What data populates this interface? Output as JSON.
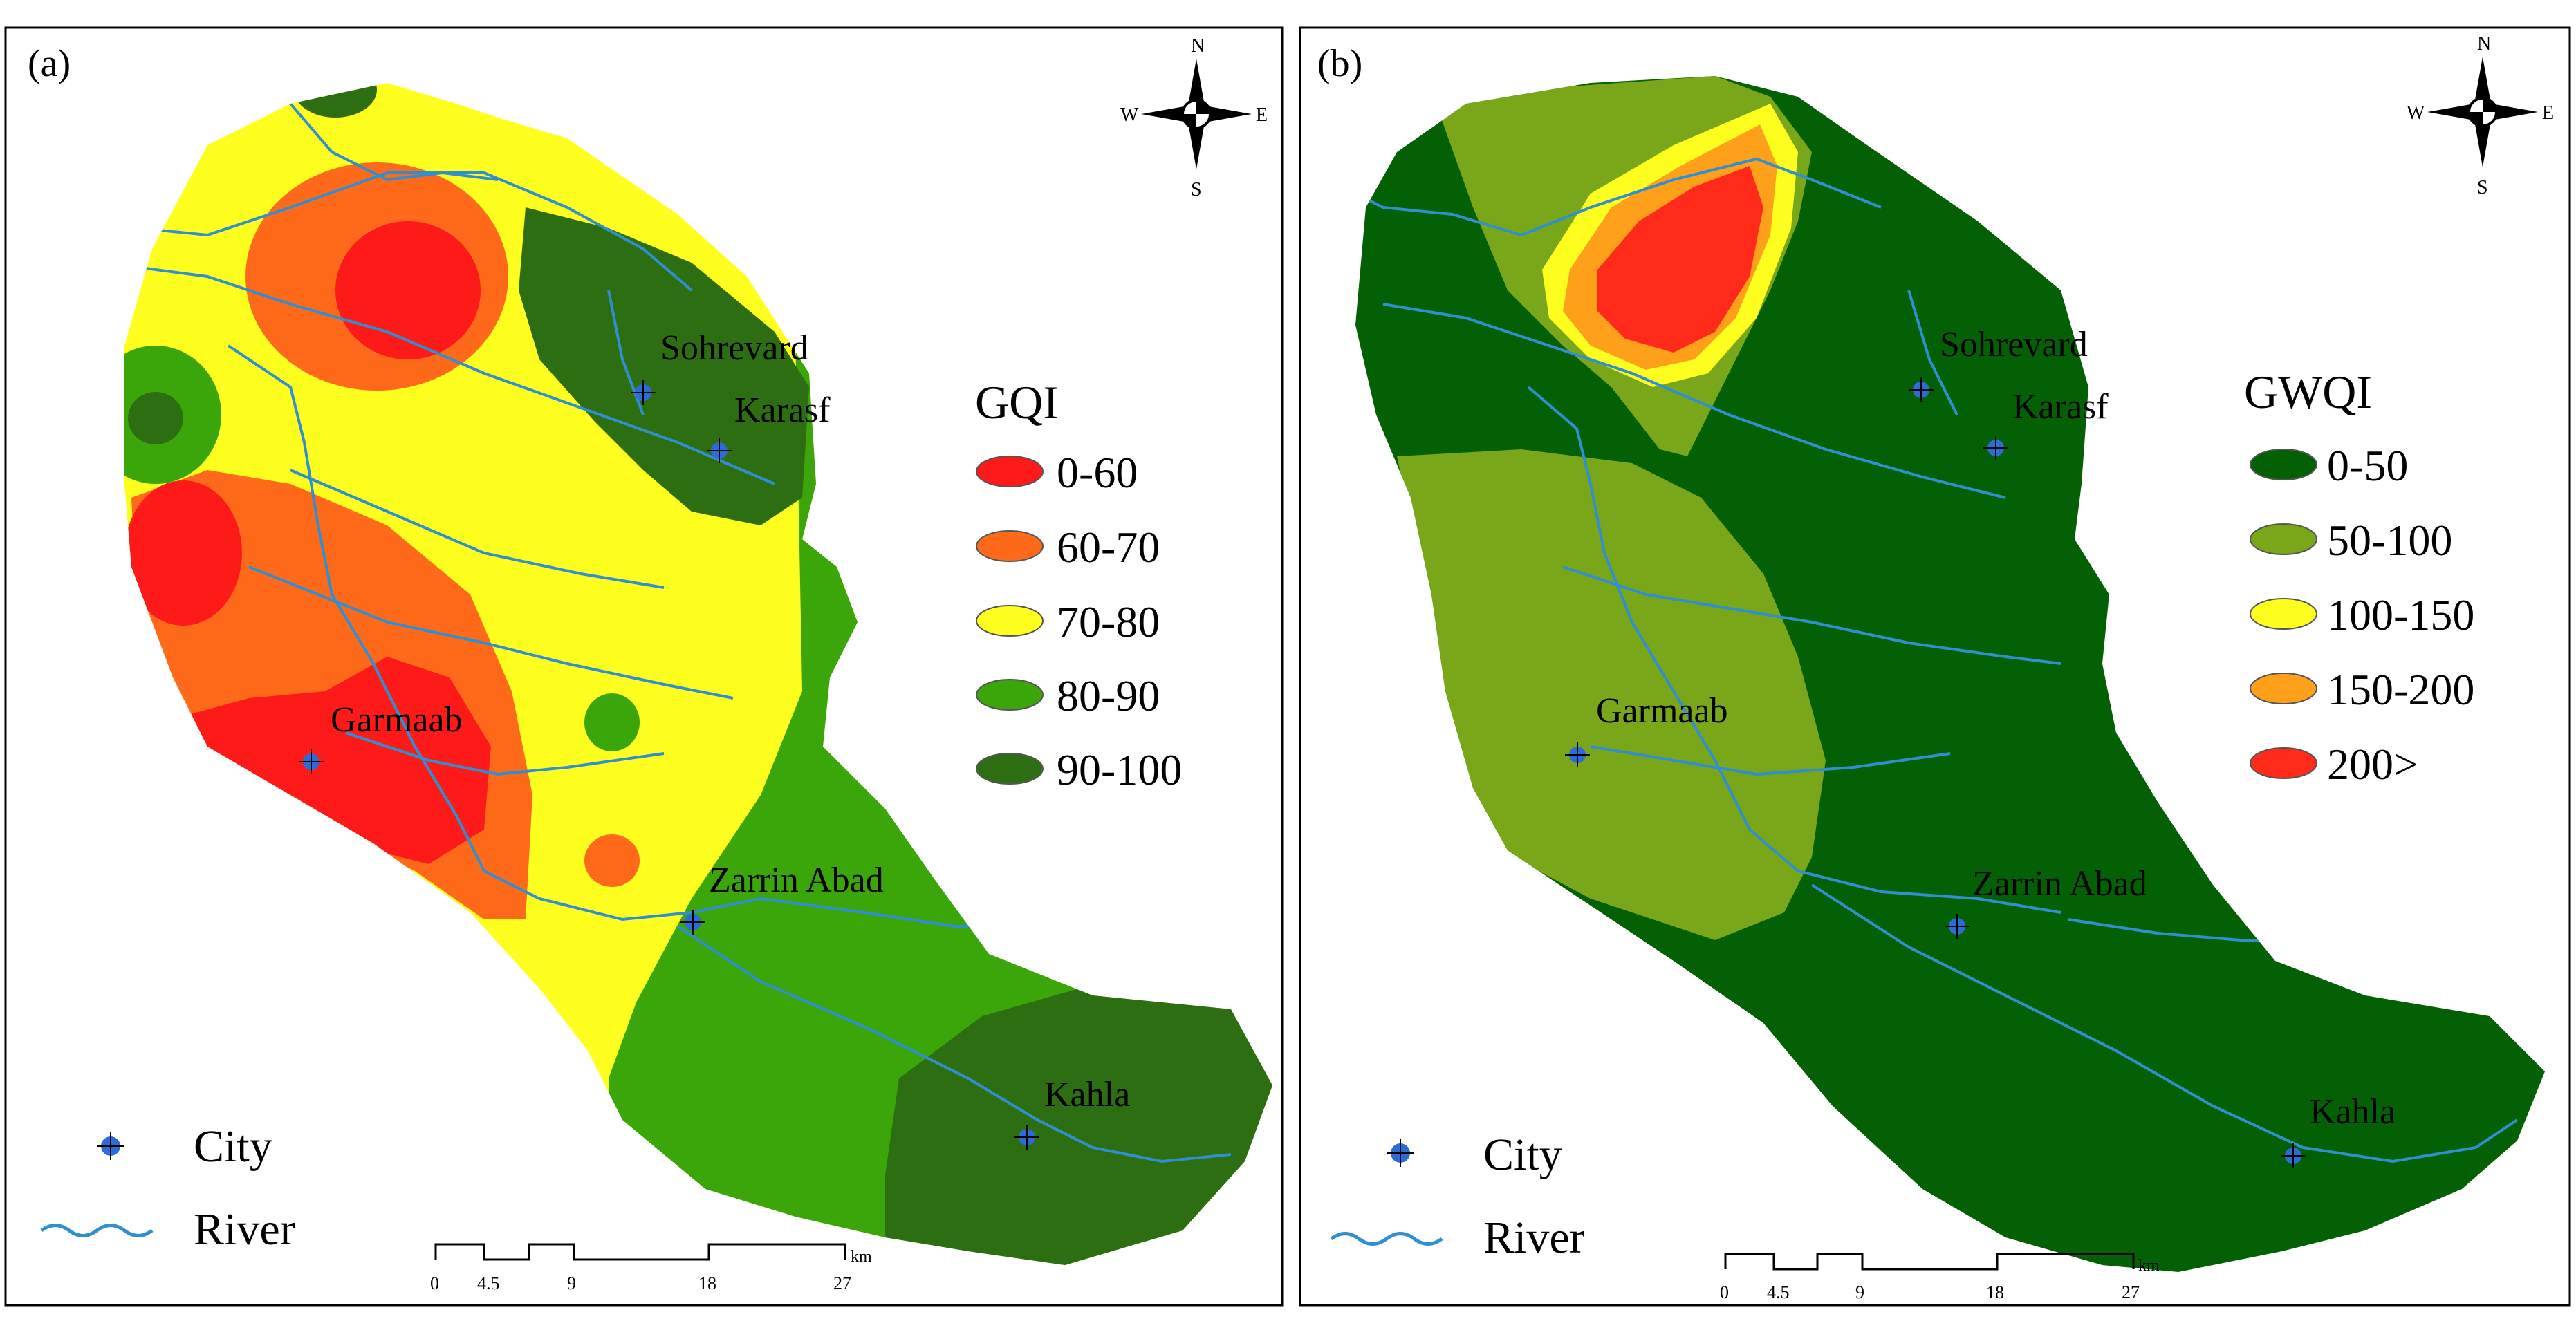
{
  "colors": {
    "gqi_0_60": "#ff1a1a",
    "gqi_60_70": "#ff6a1a",
    "gqi_70_80": "#ffff1f",
    "gqi_80_90": "#3aa60a",
    "gqi_90_100": "#2e6e12",
    "gwqi_0_50": "#046004",
    "gwqi_50_100": "#7aa61a",
    "gwqi_100_150": "#ffff1f",
    "gwqi_150_200": "#ffa01a",
    "gwqi_200": "#ff2a1a",
    "river": "#2f8fd0",
    "city": "#2b6cd8"
  },
  "panel_a": {
    "label": "(a)",
    "legend_title": "GQI",
    "legend_items": [
      {
        "label": "0-60",
        "color": "#ff1a1a"
      },
      {
        "label": "60-70",
        "color": "#ff6a1a"
      },
      {
        "label": "70-80",
        "color": "#ffff1f"
      },
      {
        "label": "80-90",
        "color": "#3aa60a"
      },
      {
        "label": "90-100",
        "color": "#2e6e12"
      }
    ],
    "cities": [
      "Sohrevard",
      "Karasf",
      "Garmaab",
      "Zarrin Abad",
      "Kahla"
    ]
  },
  "panel_b": {
    "label": "(b)",
    "legend_title": "GWQI",
    "legend_items": [
      {
        "label": "0-50",
        "color": "#046004"
      },
      {
        "label": "50-100",
        "color": "#7aa61a"
      },
      {
        "label": "100-150",
        "color": "#ffff1f"
      },
      {
        "label": "150-200",
        "color": "#ffa01a"
      },
      {
        "label": "200>",
        "color": "#ff2a1a"
      }
    ],
    "cities": [
      "Sohrevard",
      "Karasf",
      "Garmaab",
      "Zarrin Abad",
      "Kahla"
    ]
  },
  "compass": {
    "n": "N",
    "s": "S",
    "e": "E",
    "w": "W"
  },
  "map_legend": {
    "city": "City",
    "river": "River"
  },
  "scale_bar": {
    "unit": "km",
    "ticks": [
      "0",
      "4.5",
      "9",
      "18",
      "27"
    ]
  }
}
